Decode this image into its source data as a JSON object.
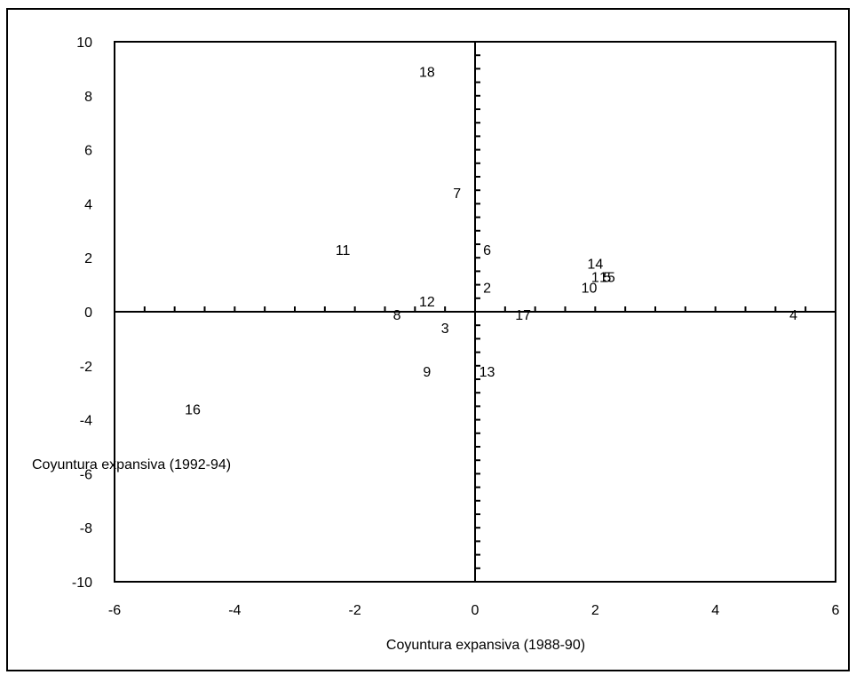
{
  "chart_data": {
    "type": "scatter",
    "xlabel": "Coyuntura expansiva (1988-90)",
    "ylabel": "Coyuntura expansiva (1992-94)",
    "xlim": [
      -6,
      6
    ],
    "ylim": [
      -10,
      10
    ],
    "x_ticks": [
      -6,
      -4,
      -2,
      0,
      2,
      4,
      6
    ],
    "y_ticks": [
      -10,
      -8,
      -6,
      -4,
      -2,
      0,
      2,
      4,
      6,
      8,
      10
    ],
    "grid": false,
    "legend": "none",
    "points": [
      {
        "label": "1",
        "x": 2.0,
        "y": 1.3
      },
      {
        "label": "2",
        "x": 0.2,
        "y": 0.9
      },
      {
        "label": "3",
        "x": -0.5,
        "y": -0.6
      },
      {
        "label": "4",
        "x": 5.3,
        "y": -0.1
      },
      {
        "label": "5",
        "x": 2.2,
        "y": 1.3
      },
      {
        "label": "6",
        "x": 0.2,
        "y": 2.3
      },
      {
        "label": "7",
        "x": -0.3,
        "y": 4.4
      },
      {
        "label": "8",
        "x": -1.3,
        "y": -0.1
      },
      {
        "label": "9",
        "x": -0.8,
        "y": -2.2
      },
      {
        "label": "10",
        "x": 1.9,
        "y": 0.9
      },
      {
        "label": "11",
        "x": -2.2,
        "y": 2.3
      },
      {
        "label": "12",
        "x": -0.8,
        "y": 0.4
      },
      {
        "label": "13",
        "x": 0.2,
        "y": -2.2
      },
      {
        "label": "14",
        "x": 2.0,
        "y": 1.8
      },
      {
        "label": "15",
        "x": 2.2,
        "y": 1.3
      },
      {
        "label": "16",
        "x": -4.7,
        "y": -3.6
      },
      {
        "label": "17",
        "x": 0.8,
        "y": -0.1
      },
      {
        "label": "18",
        "x": -0.8,
        "y": 8.9
      }
    ]
  }
}
